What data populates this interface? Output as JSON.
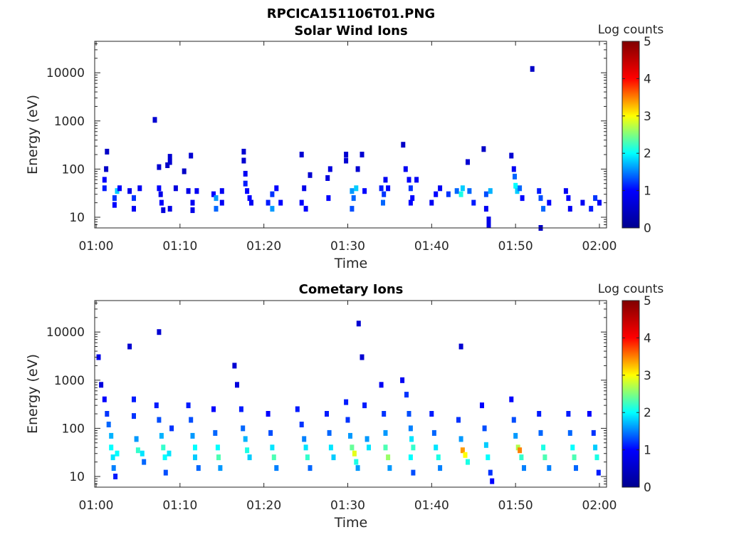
{
  "figure": {
    "title": "RPCICA151106T01.PNG"
  },
  "colormap": {
    "name": "jet",
    "stops": [
      "#00008f",
      "#0000ff",
      "#00ffff",
      "#ffff00",
      "#ff0000",
      "#800000"
    ]
  },
  "chart_data": [
    {
      "type": "heatmap",
      "title": "Solar Wind Ions",
      "xlabel": "Time",
      "ylabel": "Energy (eV)",
      "y_scale": "log",
      "xlim": [
        "01:00",
        "02:00"
      ],
      "ylim": [
        6,
        45000
      ],
      "x_ticks": [
        "01:00",
        "01:10",
        "01:20",
        "01:30",
        "01:40",
        "01:50",
        "02:00"
      ],
      "y_ticks": [
        "10",
        "100",
        "1000",
        "10000"
      ],
      "colorbar": {
        "label": "Log counts",
        "range": [
          0,
          5
        ],
        "ticks": [
          "0",
          "1",
          "2",
          "3",
          "4",
          "5"
        ]
      },
      "points": [
        [
          1.0,
          60,
          1.0
        ],
        [
          1.0,
          40,
          1.1
        ],
        [
          1.2,
          100,
          0.5
        ],
        [
          1.3,
          230,
          0.5
        ],
        [
          2.2,
          25,
          1.2
        ],
        [
          2.2,
          18,
          1.0
        ],
        [
          2.5,
          35,
          1.8
        ],
        [
          2.8,
          40,
          1.0
        ],
        [
          4.0,
          35,
          0.8
        ],
        [
          4.5,
          25,
          1.2
        ],
        [
          4.5,
          15,
          0.9
        ],
        [
          5.2,
          40,
          0.9
        ],
        [
          7.0,
          1050,
          0.6
        ],
        [
          7.5,
          40,
          1.0
        ],
        [
          7.5,
          110,
          0.6
        ],
        [
          7.7,
          30,
          0.8
        ],
        [
          7.8,
          20,
          1.0
        ],
        [
          8.0,
          14,
          0.7
        ],
        [
          8.5,
          120,
          0.5
        ],
        [
          8.8,
          180,
          0.6
        ],
        [
          8.8,
          140,
          0.6
        ],
        [
          8.8,
          15,
          0.8
        ],
        [
          9.5,
          40,
          0.7
        ],
        [
          10.5,
          90,
          0.5
        ],
        [
          11.0,
          35,
          0.8
        ],
        [
          11.3,
          190,
          0.6
        ],
        [
          11.5,
          20,
          0.9
        ],
        [
          11.5,
          14,
          0.8
        ],
        [
          12.0,
          35,
          0.9
        ],
        [
          14.0,
          30,
          1.0
        ],
        [
          14.3,
          25,
          1.6
        ],
        [
          14.3,
          15,
          1.4
        ],
        [
          15.0,
          35,
          0.9
        ],
        [
          15.0,
          20,
          0.9
        ],
        [
          17.6,
          230,
          0.6
        ],
        [
          17.6,
          150,
          0.6
        ],
        [
          17.8,
          80,
          0.9
        ],
        [
          17.8,
          50,
          1.1
        ],
        [
          18.0,
          35,
          1.0
        ],
        [
          18.3,
          25,
          1.0
        ],
        [
          18.5,
          20,
          0.9
        ],
        [
          20.5,
          20,
          1.1
        ],
        [
          21.0,
          30,
          1.2
        ],
        [
          21.0,
          15,
          1.6
        ],
        [
          21.5,
          40,
          1.0
        ],
        [
          22.0,
          20,
          1.0
        ],
        [
          24.5,
          200,
          0.6
        ],
        [
          24.8,
          40,
          0.8
        ],
        [
          24.5,
          20,
          1.0
        ],
        [
          25.0,
          15,
          1.0
        ],
        [
          25.5,
          75,
          0.6
        ],
        [
          27.6,
          65,
          0.7
        ],
        [
          27.9,
          100,
          0.7
        ],
        [
          27.7,
          25,
          1.0
        ],
        [
          29.8,
          200,
          0.6
        ],
        [
          29.8,
          150,
          0.6
        ],
        [
          30.5,
          35,
          1.6
        ],
        [
          30.7,
          25,
          1.4
        ],
        [
          30.5,
          15,
          1.3
        ],
        [
          31.0,
          40,
          1.8
        ],
        [
          31.2,
          100,
          0.6
        ],
        [
          31.7,
          200,
          0.6
        ],
        [
          32.0,
          35,
          1.0
        ],
        [
          34.0,
          40,
          1.1
        ],
        [
          34.3,
          30,
          1.2
        ],
        [
          34.5,
          60,
          0.9
        ],
        [
          34.2,
          20,
          1.4
        ],
        [
          34.8,
          40,
          1.0
        ],
        [
          36.6,
          320,
          0.5
        ],
        [
          36.9,
          100,
          0.9
        ],
        [
          37.3,
          60,
          1.0
        ],
        [
          37.5,
          40,
          1.2
        ],
        [
          37.7,
          25,
          1.0
        ],
        [
          37.5,
          20,
          1.0
        ],
        [
          38.2,
          60,
          0.9
        ],
        [
          40.0,
          20,
          0.9
        ],
        [
          40.5,
          30,
          1.0
        ],
        [
          41.0,
          40,
          0.9
        ],
        [
          42.0,
          30,
          1.2
        ],
        [
          43.0,
          35,
          1.4
        ],
        [
          43.5,
          30,
          2.1
        ],
        [
          43.7,
          40,
          1.8
        ],
        [
          44.3,
          140,
          0.6
        ],
        [
          44.5,
          35,
          1.4
        ],
        [
          45.0,
          20,
          1.1
        ],
        [
          46.2,
          260,
          0.5
        ],
        [
          46.5,
          30,
          1.3
        ],
        [
          46.5,
          15,
          0.9
        ],
        [
          46.8,
          9,
          0.8
        ],
        [
          46.8,
          7,
          0.8
        ],
        [
          47.0,
          35,
          1.7
        ],
        [
          49.5,
          190,
          0.6
        ],
        [
          49.8,
          100,
          0.9
        ],
        [
          49.9,
          70,
          1.4
        ],
        [
          50.0,
          45,
          2.0
        ],
        [
          50.2,
          35,
          1.8
        ],
        [
          50.5,
          40,
          1.4
        ],
        [
          50.8,
          25,
          1.0
        ],
        [
          52.0,
          12000,
          0.5
        ],
        [
          52.8,
          35,
          1.1
        ],
        [
          53.0,
          25,
          1.3
        ],
        [
          53.3,
          15,
          1.4
        ],
        [
          53.0,
          6,
          0.5
        ],
        [
          54.0,
          20,
          1.0
        ],
        [
          56.0,
          35,
          0.9
        ],
        [
          56.3,
          25,
          1.0
        ],
        [
          56.5,
          15,
          0.9
        ],
        [
          58.0,
          20,
          0.9
        ],
        [
          59.0,
          15,
          1.1
        ],
        [
          59.5,
          25,
          1.2
        ],
        [
          60.0,
          20,
          0.9
        ]
      ]
    },
    {
      "type": "heatmap",
      "title": "Cometary Ions",
      "xlabel": "Time",
      "ylabel": "Energy (eV)",
      "y_scale": "log",
      "xlim": [
        "01:00",
        "02:00"
      ],
      "ylim": [
        6,
        45000
      ],
      "x_ticks": [
        "01:00",
        "01:10",
        "01:20",
        "01:30",
        "01:40",
        "01:50",
        "02:00"
      ],
      "y_ticks": [
        "10",
        "100",
        "1000",
        "10000"
      ],
      "colorbar": {
        "label": "Log counts",
        "range": [
          0,
          5
        ],
        "ticks": [
          "0",
          "1",
          "2",
          "3",
          "4",
          "5"
        ]
      },
      "points": [
        [
          0.3,
          3000,
          0.8
        ],
        [
          0.6,
          800,
          0.7
        ],
        [
          1.0,
          400,
          1.0
        ],
        [
          1.3,
          200,
          1.2
        ],
        [
          1.5,
          120,
          1.4
        ],
        [
          1.8,
          70,
          1.7
        ],
        [
          1.8,
          40,
          2.0
        ],
        [
          2.0,
          25,
          1.9
        ],
        [
          2.1,
          15,
          1.5
        ],
        [
          2.3,
          10,
          1.1
        ],
        [
          2.5,
          30,
          2.0
        ],
        [
          4.0,
          5000,
          0.6
        ],
        [
          4.5,
          400,
          1.1
        ],
        [
          4.5,
          180,
          1.2
        ],
        [
          4.8,
          60,
          1.6
        ],
        [
          5.0,
          35,
          2.2
        ],
        [
          5.5,
          30,
          1.9
        ],
        [
          5.7,
          20,
          1.4
        ],
        [
          7.5,
          10000,
          0.6
        ],
        [
          7.2,
          300,
          1.1
        ],
        [
          7.5,
          150,
          1.3
        ],
        [
          7.8,
          70,
          1.7
        ],
        [
          8.0,
          40,
          2.2
        ],
        [
          8.2,
          25,
          2.0
        ],
        [
          8.3,
          12,
          1.3
        ],
        [
          8.7,
          30,
          1.9
        ],
        [
          9.0,
          100,
          1.2
        ],
        [
          11.0,
          300,
          1.1
        ],
        [
          11.3,
          150,
          1.3
        ],
        [
          11.5,
          70,
          1.6
        ],
        [
          11.8,
          40,
          2.0
        ],
        [
          11.8,
          25,
          1.8
        ],
        [
          12.2,
          15,
          1.4
        ],
        [
          14.0,
          250,
          1.0
        ],
        [
          14.2,
          80,
          1.4
        ],
        [
          14.5,
          40,
          2.0
        ],
        [
          14.6,
          25,
          2.3
        ],
        [
          14.8,
          15,
          1.6
        ],
        [
          16.5,
          2000,
          0.6
        ],
        [
          16.8,
          800,
          0.7
        ],
        [
          17.3,
          250,
          1.1
        ],
        [
          17.5,
          100,
          1.4
        ],
        [
          17.8,
          60,
          1.7
        ],
        [
          18.0,
          35,
          2.1
        ],
        [
          18.3,
          25,
          1.8
        ],
        [
          20.5,
          200,
          1.0
        ],
        [
          20.8,
          80,
          1.3
        ],
        [
          21.0,
          40,
          1.9
        ],
        [
          21.2,
          25,
          2.3
        ],
        [
          21.5,
          15,
          1.5
        ],
        [
          24.0,
          250,
          1.1
        ],
        [
          24.5,
          120,
          1.2
        ],
        [
          24.8,
          60,
          1.5
        ],
        [
          25.0,
          40,
          1.9
        ],
        [
          25.2,
          25,
          2.2
        ],
        [
          25.5,
          15,
          1.4
        ],
        [
          27.5,
          200,
          1.1
        ],
        [
          27.8,
          80,
          1.4
        ],
        [
          28.0,
          40,
          1.9
        ],
        [
          28.3,
          25,
          1.8
        ],
        [
          29.8,
          350,
          1.1
        ],
        [
          30.0,
          150,
          1.2
        ],
        [
          30.3,
          70,
          1.6
        ],
        [
          30.5,
          40,
          2.4
        ],
        [
          30.8,
          30,
          2.9
        ],
        [
          31.0,
          20,
          2.1
        ],
        [
          31.2,
          15,
          1.6
        ],
        [
          31.3,
          15000,
          0.6
        ],
        [
          31.7,
          3000,
          0.6
        ],
        [
          32.0,
          300,
          1.1
        ],
        [
          32.3,
          60,
          1.6
        ],
        [
          32.5,
          40,
          1.9
        ],
        [
          34.0,
          800,
          0.9
        ],
        [
          34.3,
          200,
          1.2
        ],
        [
          34.5,
          80,
          1.6
        ],
        [
          34.5,
          40,
          2.3
        ],
        [
          34.8,
          25,
          2.6
        ],
        [
          35.0,
          15,
          1.6
        ],
        [
          36.5,
          1000,
          0.9
        ],
        [
          37.0,
          500,
          1.2
        ],
        [
          37.3,
          200,
          1.3
        ],
        [
          37.5,
          100,
          1.5
        ],
        [
          37.6,
          60,
          1.9
        ],
        [
          37.8,
          40,
          2.2
        ],
        [
          37.5,
          25,
          2.0
        ],
        [
          37.8,
          12,
          1.3
        ],
        [
          40.0,
          200,
          1.1
        ],
        [
          40.3,
          80,
          1.4
        ],
        [
          40.5,
          40,
          1.9
        ],
        [
          40.8,
          25,
          2.1
        ],
        [
          41.0,
          15,
          1.5
        ],
        [
          43.5,
          5000,
          0.6
        ],
        [
          43.2,
          150,
          1.2
        ],
        [
          43.5,
          60,
          1.6
        ],
        [
          43.7,
          35,
          3.4
        ],
        [
          44.0,
          28,
          3.0
        ],
        [
          44.3,
          20,
          2.1
        ],
        [
          46.0,
          300,
          1.0
        ],
        [
          46.3,
          100,
          1.3
        ],
        [
          46.5,
          45,
          1.8
        ],
        [
          46.7,
          25,
          2.0
        ],
        [
          47.0,
          12,
          1.2
        ],
        [
          47.2,
          8,
          1.0
        ],
        [
          49.5,
          400,
          1.0
        ],
        [
          49.8,
          150,
          1.3
        ],
        [
          50.0,
          70,
          1.6
        ],
        [
          50.3,
          40,
          2.7
        ],
        [
          50.5,
          35,
          3.5
        ],
        [
          50.7,
          25,
          2.2
        ],
        [
          51.0,
          15,
          1.5
        ],
        [
          52.8,
          200,
          1.1
        ],
        [
          53.0,
          80,
          1.4
        ],
        [
          53.3,
          40,
          2.1
        ],
        [
          53.5,
          25,
          2.3
        ],
        [
          54.0,
          15,
          1.5
        ],
        [
          56.3,
          200,
          1.1
        ],
        [
          56.5,
          80,
          1.4
        ],
        [
          56.8,
          40,
          2.0
        ],
        [
          57.0,
          25,
          2.3
        ],
        [
          57.2,
          15,
          1.4
        ],
        [
          58.8,
          200,
          1.0
        ],
        [
          59.3,
          80,
          1.2
        ],
        [
          59.5,
          40,
          1.8
        ],
        [
          59.7,
          25,
          2.1
        ],
        [
          59.9,
          12,
          1.1
        ]
      ]
    }
  ]
}
